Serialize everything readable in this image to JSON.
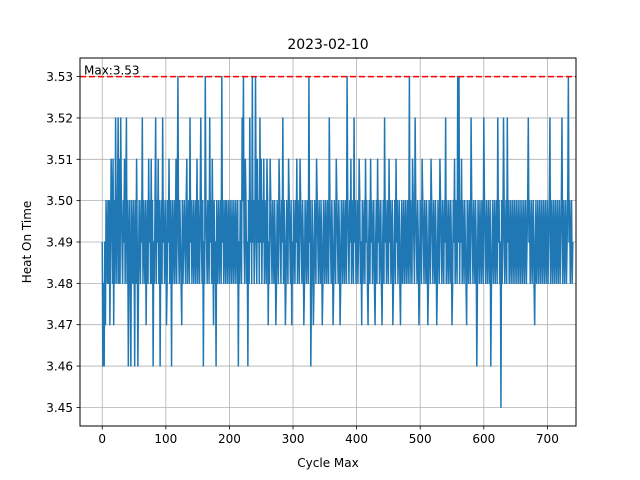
{
  "chart_data": {
    "type": "line",
    "title": "2023-02-10",
    "xlabel": "Cycle Max",
    "ylabel": "Heat On Time",
    "xlim": [
      -35,
      745
    ],
    "ylim": [
      3.4455,
      3.5345
    ],
    "xticks": [
      0,
      100,
      200,
      300,
      400,
      500,
      600,
      700
    ],
    "yticks": [
      3.45,
      3.46,
      3.47,
      3.48,
      3.49,
      3.5,
      3.51,
      3.52,
      3.53
    ],
    "ytick_labels": [
      "3.45",
      "3.46",
      "3.47",
      "3.48",
      "3.49",
      "3.50",
      "3.51",
      "3.52",
      "3.53"
    ],
    "grid": true,
    "series_color": "#1f77b4",
    "max_line": {
      "value": 3.53,
      "label": "Max:3.53",
      "color": "#ff0000",
      "style": "dashed"
    },
    "series": [
      {
        "x_start": 0,
        "x_step": 1,
        "values": [
          3.49,
          3.46,
          3.48,
          3.46,
          3.49,
          3.47,
          3.5,
          3.49,
          3.48,
          3.5,
          3.48,
          3.5,
          3.47,
          3.49,
          3.51,
          3.5,
          3.48,
          3.51,
          3.47,
          3.5,
          3.48,
          3.52,
          3.49,
          3.48,
          3.5,
          3.52,
          3.48,
          3.51,
          3.48,
          3.52,
          3.5,
          3.49,
          3.48,
          3.5,
          3.49,
          3.51,
          3.48,
          3.5,
          3.52,
          3.48,
          3.5,
          3.46,
          3.49,
          3.5,
          3.48,
          3.46,
          3.5,
          3.49,
          3.48,
          3.5,
          3.49,
          3.46,
          3.5,
          3.48,
          3.51,
          3.49,
          3.46,
          3.48,
          3.5,
          3.49,
          3.48,
          3.5,
          3.49,
          3.52,
          3.48,
          3.5,
          3.49,
          3.48,
          3.5,
          3.47,
          3.49,
          3.5,
          3.48,
          3.51,
          3.49,
          3.5,
          3.48,
          3.51,
          3.48,
          3.5,
          3.46,
          3.49,
          3.48,
          3.5,
          3.52,
          3.48,
          3.5,
          3.49,
          3.51,
          3.48,
          3.5,
          3.46,
          3.49,
          3.5,
          3.48,
          3.52,
          3.49,
          3.5,
          3.48,
          3.49,
          3.5,
          3.47,
          3.48,
          3.5,
          3.49,
          3.51,
          3.48,
          3.5,
          3.49,
          3.46,
          3.5,
          3.48,
          3.49,
          3.5,
          3.48,
          3.49,
          3.51,
          3.48,
          3.5,
          3.53,
          3.49,
          3.48,
          3.5,
          3.49,
          3.48,
          3.47,
          3.5,
          3.48,
          3.49,
          3.5,
          3.49,
          3.48,
          3.5,
          3.51,
          3.48,
          3.49,
          3.5,
          3.48,
          3.52,
          3.49,
          3.5,
          3.48,
          3.49,
          3.5,
          3.48,
          3.49,
          3.5,
          3.48,
          3.49,
          3.51,
          3.48,
          3.5,
          3.49,
          3.48,
          3.5,
          3.52,
          3.49,
          3.48,
          3.5,
          3.46,
          3.49,
          3.48,
          3.53,
          3.5,
          3.49,
          3.48,
          3.5,
          3.49,
          3.48,
          3.52,
          3.49,
          3.5,
          3.48,
          3.51,
          3.49,
          3.47,
          3.5,
          3.48,
          3.49,
          3.46,
          3.5,
          3.48,
          3.49,
          3.5,
          3.48,
          3.49,
          3.5,
          3.48,
          3.53,
          3.49,
          3.5,
          3.48,
          3.49,
          3.5,
          3.48,
          3.5,
          3.49,
          3.48,
          3.5,
          3.49,
          3.48,
          3.5,
          3.49,
          3.48,
          3.5,
          3.49,
          3.48,
          3.5,
          3.49,
          3.48,
          3.5,
          3.49,
          3.48,
          3.5,
          3.46,
          3.49,
          3.48,
          3.5,
          3.49,
          3.48,
          3.52,
          3.5,
          3.53,
          3.49,
          3.48,
          3.51,
          3.5,
          3.48,
          3.49,
          3.46,
          3.5,
          3.48,
          3.52,
          3.49,
          3.5,
          3.48,
          3.53,
          3.49,
          3.5,
          3.48,
          3.49,
          3.53,
          3.5,
          3.48,
          3.51,
          3.49,
          3.5,
          3.48,
          3.52,
          3.49,
          3.51,
          3.48,
          3.5,
          3.49,
          3.51,
          3.48,
          3.5,
          3.49,
          3.48,
          3.51,
          3.5,
          3.47,
          3.49,
          3.48,
          3.51,
          3.5,
          3.49,
          3.48,
          3.5,
          3.49,
          3.48,
          3.5,
          3.49,
          3.47,
          3.48,
          3.5,
          3.49,
          3.48,
          3.51,
          3.5,
          3.49,
          3.48,
          3.5,
          3.49,
          3.52,
          3.48,
          3.5,
          3.49,
          3.47,
          3.48,
          3.5,
          3.49,
          3.48,
          3.51,
          3.5,
          3.49,
          3.48,
          3.5,
          3.47,
          3.49,
          3.48,
          3.5,
          3.49,
          3.48,
          3.5,
          3.49,
          3.51,
          3.48,
          3.5,
          3.49,
          3.48,
          3.51,
          3.5,
          3.49,
          3.48,
          3.5,
          3.49,
          3.47,
          3.48,
          3.5,
          3.49,
          3.48,
          3.5,
          3.49,
          3.48,
          3.53,
          3.49,
          3.5,
          3.46,
          3.48,
          3.5,
          3.49,
          3.47,
          3.48,
          3.5,
          3.49,
          3.48,
          3.51,
          3.5,
          3.49,
          3.48,
          3.5,
          3.49,
          3.48,
          3.5,
          3.49,
          3.47,
          3.48,
          3.5,
          3.49,
          3.48,
          3.5,
          3.49,
          3.48,
          3.5,
          3.49,
          3.48,
          3.52,
          3.5,
          3.49,
          3.48,
          3.5,
          3.49,
          3.47,
          3.48,
          3.5,
          3.49,
          3.48,
          3.51,
          3.5,
          3.49,
          3.48,
          3.5,
          3.49,
          3.47,
          3.48,
          3.5,
          3.49,
          3.48,
          3.5,
          3.49,
          3.48,
          3.5,
          3.49,
          3.48,
          3.53,
          3.5,
          3.49,
          3.48,
          3.5,
          3.49,
          3.51,
          3.48,
          3.5,
          3.49,
          3.48,
          3.52,
          3.49,
          3.5,
          3.48,
          3.49,
          3.5,
          3.48,
          3.49,
          3.51,
          3.5,
          3.48,
          3.49,
          3.47,
          3.5,
          3.48,
          3.49,
          3.5,
          3.48,
          3.51,
          3.49,
          3.5,
          3.48,
          3.47,
          3.49,
          3.5,
          3.48,
          3.51,
          3.49,
          3.5,
          3.48,
          3.49,
          3.5,
          3.48,
          3.47,
          3.49,
          3.5,
          3.48,
          3.51,
          3.49,
          3.5,
          3.48,
          3.49,
          3.5,
          3.48,
          3.47,
          3.49,
          3.5,
          3.48,
          3.52,
          3.49,
          3.5,
          3.48,
          3.49,
          3.5,
          3.48,
          3.51,
          3.49,
          3.5,
          3.48,
          3.49,
          3.5,
          3.47,
          3.48,
          3.49,
          3.5,
          3.48,
          3.51,
          3.49,
          3.5,
          3.48,
          3.49,
          3.5,
          3.48,
          3.47,
          3.49,
          3.5,
          3.48,
          3.49,
          3.5,
          3.48,
          3.49,
          3.5,
          3.48,
          3.49,
          3.5,
          3.48,
          3.49,
          3.53,
          3.48,
          3.5,
          3.49,
          3.48,
          3.51,
          3.5,
          3.49,
          3.48,
          3.52,
          3.5,
          3.49,
          3.48,
          3.5,
          3.49,
          3.47,
          3.48,
          3.5,
          3.49,
          3.48,
          3.51,
          3.5,
          3.49,
          3.48,
          3.5,
          3.49,
          3.48,
          3.5,
          3.49,
          3.47,
          3.48,
          3.5,
          3.49,
          3.48,
          3.51,
          3.5,
          3.49,
          3.48,
          3.5,
          3.49,
          3.48,
          3.5,
          3.49,
          3.47,
          3.48,
          3.5,
          3.49,
          3.48,
          3.51,
          3.5,
          3.49,
          3.48,
          3.5,
          3.49,
          3.48,
          3.5,
          3.49,
          3.52,
          3.48,
          3.5,
          3.49,
          3.48,
          3.5,
          3.49,
          3.48,
          3.5,
          3.49,
          3.47,
          3.48,
          3.5,
          3.49,
          3.51,
          3.48,
          3.5,
          3.49,
          3.48,
          3.53,
          3.49,
          3.53,
          3.48,
          3.5,
          3.49,
          3.51,
          3.48,
          3.5,
          3.49,
          3.48,
          3.5,
          3.49,
          3.48,
          3.47,
          3.5,
          3.49,
          3.48,
          3.5,
          3.49,
          3.48,
          3.52,
          3.5,
          3.49,
          3.48,
          3.5,
          3.49,
          3.48,
          3.5,
          3.49,
          3.46,
          3.48,
          3.5,
          3.49,
          3.48,
          3.5,
          3.49,
          3.48,
          3.5,
          3.49,
          3.48,
          3.52,
          3.5,
          3.49,
          3.48,
          3.5,
          3.49,
          3.48,
          3.5,
          3.49,
          3.48,
          3.5,
          3.46,
          3.48,
          3.49,
          3.5,
          3.48,
          3.49,
          3.5,
          3.48,
          3.49,
          3.5,
          3.48,
          3.52,
          3.49,
          3.5,
          3.48,
          3.49,
          3.45,
          3.5,
          3.48,
          3.49,
          3.52,
          3.5,
          3.48,
          3.49,
          3.5,
          3.48,
          3.52,
          3.49,
          3.5,
          3.48,
          3.49,
          3.5,
          3.48,
          3.49,
          3.5,
          3.48,
          3.49,
          3.5,
          3.48,
          3.49,
          3.5,
          3.48,
          3.49,
          3.5,
          3.48,
          3.49,
          3.5,
          3.48,
          3.49,
          3.5,
          3.48,
          3.49,
          3.5,
          3.48,
          3.49,
          3.5,
          3.48,
          3.49,
          3.5,
          3.52,
          3.49,
          3.5,
          3.48,
          3.49,
          3.5,
          3.48,
          3.49,
          3.5,
          3.48,
          3.47,
          3.49,
          3.5,
          3.48,
          3.49,
          3.5,
          3.48,
          3.49,
          3.5,
          3.48,
          3.49,
          3.5,
          3.48,
          3.49,
          3.5,
          3.48,
          3.49,
          3.5,
          3.48,
          3.49,
          3.5,
          3.48,
          3.49,
          3.5,
          3.52,
          3.48,
          3.49,
          3.5,
          3.48,
          3.49,
          3.5,
          3.48,
          3.49,
          3.5,
          3.48,
          3.49,
          3.5,
          3.48,
          3.49,
          3.5,
          3.48,
          3.49,
          3.5,
          3.52,
          3.48,
          3.49,
          3.5,
          3.48,
          3.49,
          3.5,
          3.48,
          3.49,
          3.5,
          3.53,
          3.49,
          3.5,
          3.48,
          3.49,
          3.5,
          3.48,
          3.49
        ]
      }
    ]
  }
}
